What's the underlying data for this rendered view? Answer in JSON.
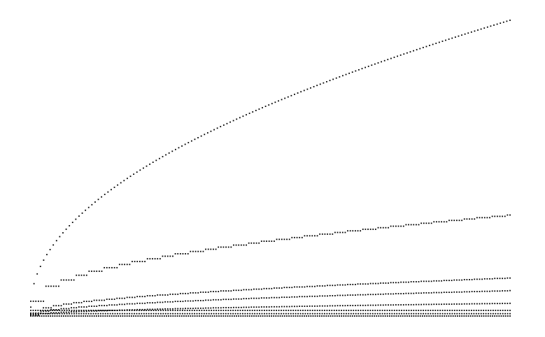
{
  "chart_data": {
    "type": "scatter",
    "title": "",
    "xlabel": "",
    "ylabel": "",
    "axes_visible": false,
    "grid": false,
    "legend": "none",
    "point_color": "#000000",
    "xlim": [
      0,
      1
    ],
    "ylim": [
      0,
      1
    ],
    "series": [
      {
        "kind": "curve",
        "x_start": 0.0,
        "x_end": 1.0,
        "y_start": 0.03,
        "y_end": 1.0,
        "curve_exponent": 0.5,
        "step": 0.0,
        "points": 150
      },
      {
        "kind": "staircase",
        "x_start": 0.0,
        "x_end": 1.0,
        "y_start": 0.05,
        "y_end": 0.343,
        "curve_exponent": 0.5,
        "step": 0.03,
        "points": 190
      },
      {
        "kind": "staircase",
        "x_start": 0.0,
        "x_end": 1.0,
        "y_start": 0.01,
        "y_end": 0.129,
        "curve_exponent": 0.5,
        "step": 0.022,
        "points": 190
      },
      {
        "kind": "staircase",
        "x_start": 0.0,
        "x_end": 1.0,
        "y_start": 0.005,
        "y_end": 0.086,
        "curve_exponent": 0.5,
        "step": 0.02,
        "points": 190
      },
      {
        "kind": "staircase",
        "x_start": 0.0,
        "x_end": 1.0,
        "y_start": 0.003,
        "y_end": 0.043,
        "curve_exponent": 0.5,
        "step": 0.02,
        "points": 190
      },
      {
        "kind": "flat",
        "x_start": 0.0,
        "x_end": 1.0,
        "y_start": 0.019,
        "y_end": 0.019,
        "curve_exponent": 1,
        "step": 0.0,
        "points": 200
      },
      {
        "kind": "flat",
        "x_start": 0.0,
        "x_end": 1.0,
        "y_start": 0.008,
        "y_end": 0.008,
        "curve_exponent": 1,
        "step": 0.0,
        "points": 200
      },
      {
        "kind": "flat",
        "x_start": 0.0,
        "x_end": 1.0,
        "y_start": 0.0,
        "y_end": 0.0,
        "curve_exponent": 1,
        "step": 0.0,
        "points": 220
      }
    ]
  }
}
